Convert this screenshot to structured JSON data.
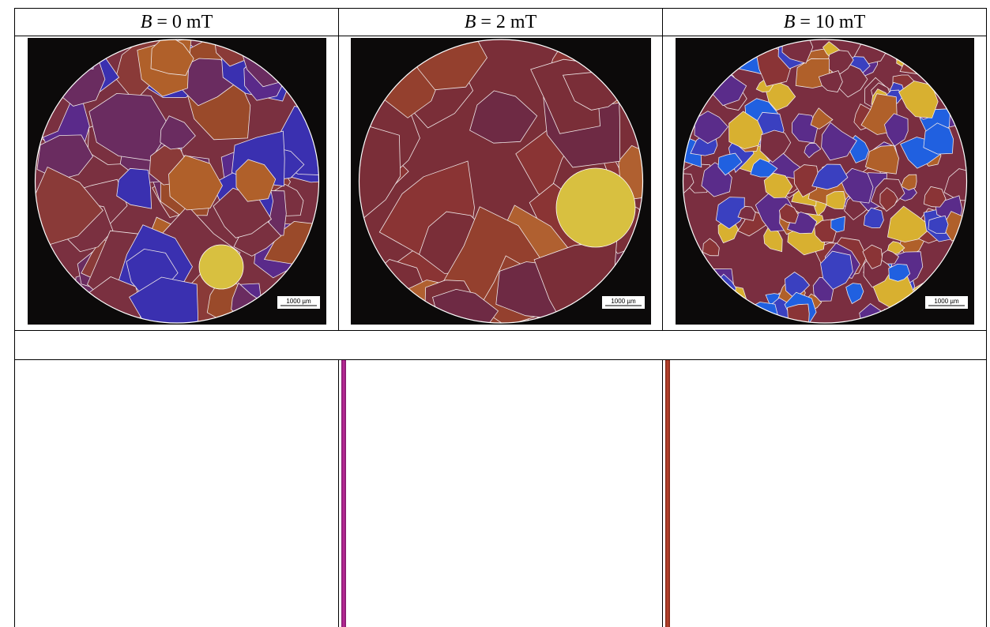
{
  "table": {
    "headers": [
      {
        "variable": "B",
        "value": "= 0 mT"
      },
      {
        "variable": "B",
        "value": "= 2 mT"
      },
      {
        "variable": "B",
        "value": "= 10 mT"
      }
    ],
    "images": [
      {
        "scale_bar": "1000 µm"
      },
      {
        "scale_bar": "1000 µm"
      },
      {
        "scale_bar": "1000 µm"
      }
    ]
  }
}
